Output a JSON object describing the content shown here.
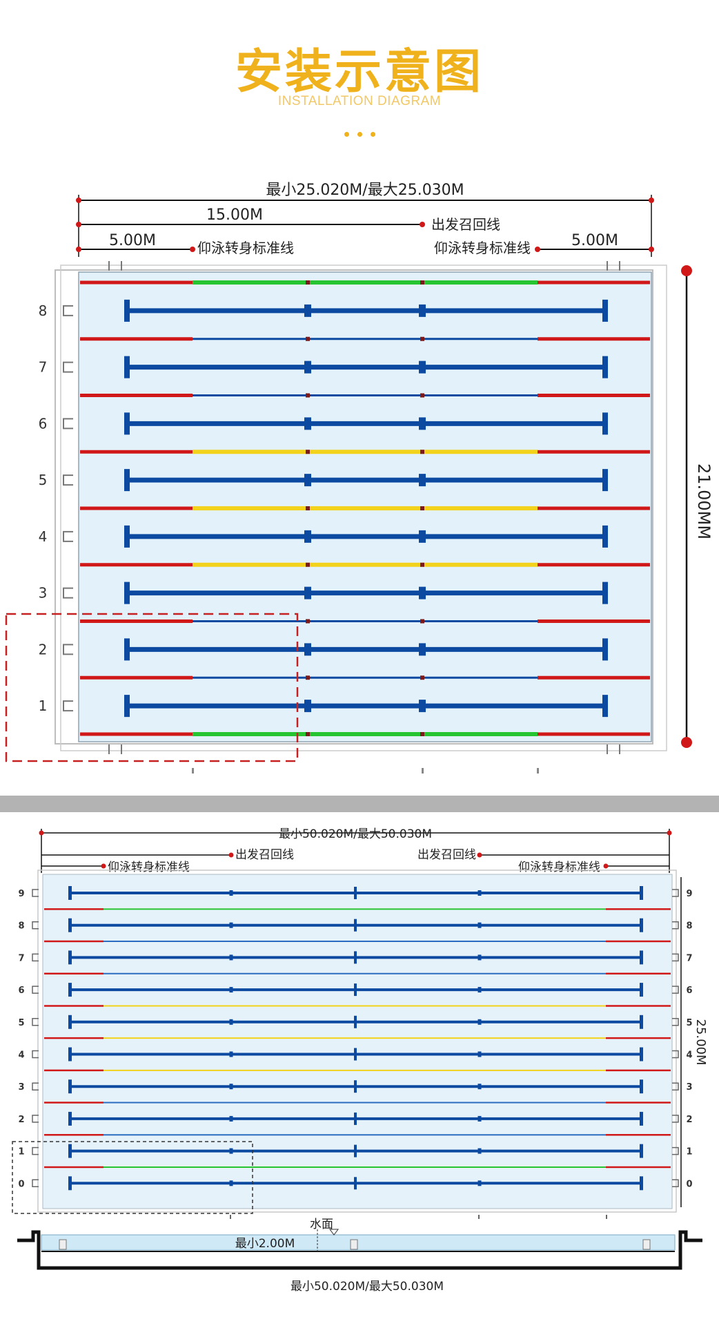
{
  "header": {
    "title": "安装示意图",
    "subtitle": "INSTALLATION DIAGRAM"
  },
  "pool25": {
    "overall_length": "最小25.020M/最大25.030M",
    "mid_distance": "15.00M",
    "end_distance_left": "5.00M",
    "end_distance_right": "5.00M",
    "recall_line": "出发召回线",
    "backstroke_left": "仰泳转身标准线",
    "backstroke_right": "仰泳转身标准线",
    "width": "21.00MM",
    "lanes": [
      "8",
      "7",
      "6",
      "5",
      "4",
      "3",
      "2",
      "1"
    ],
    "rope_colors": [
      "green",
      "red",
      "red",
      "yellow",
      "yellow",
      "yellow",
      "red",
      "red",
      "green"
    ]
  },
  "pool50": {
    "overall_length": "最小50.020M/最大50.030M",
    "recall_line_left": "出发召回线",
    "recall_line_right": "出发召回线",
    "backstroke_left": "仰泳转身标准线",
    "backstroke_right": "仰泳转身标准线",
    "width": "25.00M",
    "lanes": [
      "9",
      "8",
      "7",
      "6",
      "5",
      "4",
      "3",
      "2",
      "1",
      "0"
    ],
    "rope_colors": [
      "green",
      "red",
      "red",
      "yellow",
      "yellow",
      "yellow",
      "red",
      "red",
      "green"
    ],
    "water_surface": "水面",
    "depth": "最小2.00M",
    "section_length": "最小50.020M/最大50.030M"
  },
  "colors": {
    "title": "#f0b21c",
    "lane_line": "#0b4aa0",
    "rope_red": "#d01818",
    "rope_green": "#25c430",
    "rope_yellow": "#f2d21a",
    "water": "#e3f1fa",
    "dimension_dot": "#d01818"
  }
}
